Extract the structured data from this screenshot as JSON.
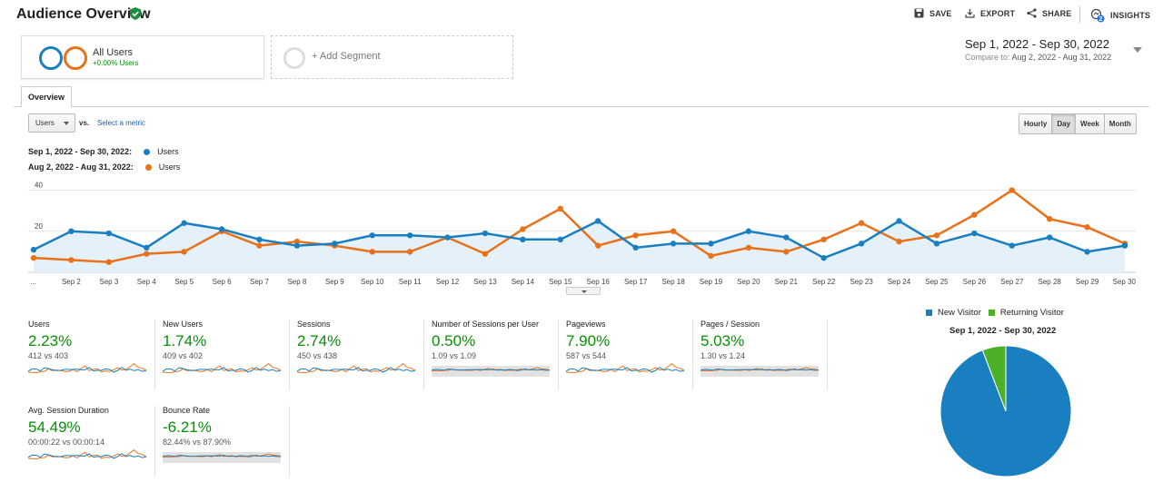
{
  "header": {
    "title": "Audience Overview",
    "save": "SAVE",
    "export": "EXPORT",
    "share": "SHARE",
    "insights": "INSIGHTS",
    "insights_badge": "2"
  },
  "segments": {
    "all_users": "All Users",
    "all_users_change": "+0.00% Users",
    "add": "+ Add Segment"
  },
  "daterange": {
    "main": "Sep 1, 2022 - Sep 30, 2022",
    "compare_label": "Compare to:",
    "compare": "Aug 2, 2022 - Aug 31, 2022"
  },
  "tabs": {
    "overview": "Overview"
  },
  "controls": {
    "metric": "Users",
    "vs": "vs.",
    "select_metric": "Select a metric",
    "granularity": [
      "Hourly",
      "Day",
      "Week",
      "Month"
    ],
    "active": "Day"
  },
  "legend": {
    "current_range": "Sep 1, 2022 - Sep 30, 2022:",
    "previous_range": "Aug 2, 2022 - Aug 31, 2022:",
    "series": "Users"
  },
  "colors": {
    "current": "#1a7fc1",
    "previous": "#e8711a",
    "positive": "#0a8f08",
    "returning": "#4caf28"
  },
  "chart_data": {
    "type": "line",
    "x": [
      "...",
      "Sep 2",
      "Sep 3",
      "Sep 4",
      "Sep 5",
      "Sep 6",
      "Sep 7",
      "Sep 8",
      "Sep 9",
      "Sep 10",
      "Sep 11",
      "Sep 12",
      "Sep 13",
      "Sep 14",
      "Sep 15",
      "Sep 16",
      "Sep 17",
      "Sep 18",
      "Sep 19",
      "Sep 20",
      "Sep 21",
      "Sep 22",
      "Sep 23",
      "Sep 24",
      "Sep 25",
      "Sep 26",
      "Sep 27",
      "Sep 28",
      "Sep 29",
      "Sep 30"
    ],
    "series": [
      {
        "name": "Users",
        "range": "Sep 1, 2022 - Sep 30, 2022",
        "values": [
          11,
          20,
          19,
          12,
          24,
          21,
          16,
          13,
          14,
          18,
          18,
          17,
          19,
          16,
          16,
          25,
          12,
          14,
          14,
          20,
          17,
          7,
          14,
          25,
          14,
          19,
          13,
          17,
          10,
          13
        ]
      },
      {
        "name": "Users",
        "range": "Aug 2, 2022 - Aug 31, 2022",
        "values": [
          7,
          6,
          5,
          9,
          10,
          20,
          13,
          15,
          13,
          10,
          10,
          17,
          9,
          21,
          31,
          13,
          18,
          20,
          8,
          12,
          10,
          16,
          24,
          15,
          18,
          28,
          40,
          26,
          22,
          14
        ]
      }
    ],
    "yticks": [
      20,
      40
    ],
    "ylim": [
      0,
      42
    ],
    "grid": true
  },
  "kpis": [
    {
      "title": "Users",
      "pct": "2.23%",
      "sub": "412 vs 403"
    },
    {
      "title": "New Users",
      "pct": "1.74%",
      "sub": "409 vs 402"
    },
    {
      "title": "Sessions",
      "pct": "2.74%",
      "sub": "450 vs 438"
    },
    {
      "title": "Number of Sessions per User",
      "pct": "0.50%",
      "sub": "1.09 vs 1.09"
    },
    {
      "title": "Pageviews",
      "pct": "7.90%",
      "sub": "587 vs 544"
    },
    {
      "title": "Pages / Session",
      "pct": "5.03%",
      "sub": "1.30 vs 1.24"
    },
    {
      "title": "Avg. Session Duration",
      "pct": "54.49%",
      "sub": "00:00:22 vs 00:00:14"
    },
    {
      "title": "Bounce Rate",
      "pct": "-6.21%",
      "sub": "82.44% vs 87.90%"
    }
  ],
  "pie": {
    "legend": [
      "New Visitor",
      "Returning Visitor"
    ],
    "title": "Sep 1, 2022 - Sep 30, 2022",
    "slices": [
      {
        "name": "New Visitor",
        "value": 94.2,
        "label": "94.2%"
      },
      {
        "name": "Returning Visitor",
        "value": 5.8
      }
    ]
  }
}
